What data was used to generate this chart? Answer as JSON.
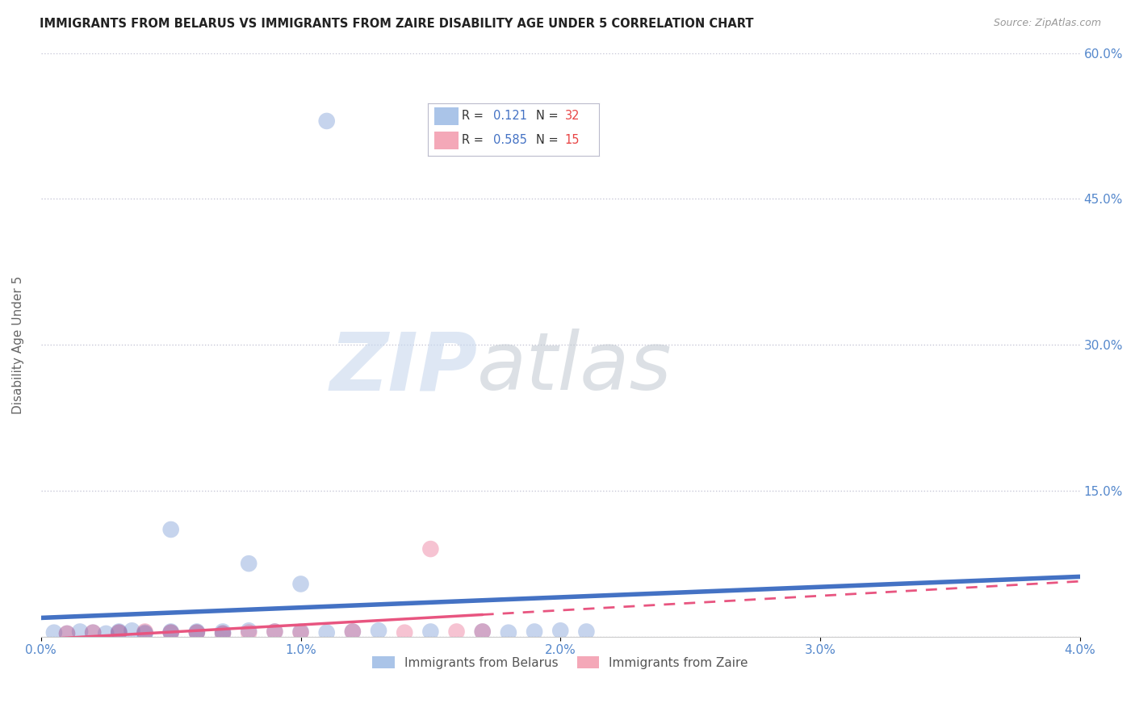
{
  "title": "IMMIGRANTS FROM BELARUS VS IMMIGRANTS FROM ZAIRE DISABILITY AGE UNDER 5 CORRELATION CHART",
  "source": "Source: ZipAtlas.com",
  "ylabel": "Disability Age Under 5",
  "xlim": [
    0.0,
    0.04
  ],
  "ylim": [
    0.0,
    0.6
  ],
  "xticks": [
    0.0,
    0.01,
    0.02,
    0.03,
    0.04
  ],
  "xtick_labels": [
    "0.0%",
    "1.0%",
    "2.0%",
    "3.0%",
    "4.0%"
  ],
  "yticks": [
    0.0,
    0.15,
    0.3,
    0.45,
    0.6
  ],
  "ytick_labels": [
    "",
    "15.0%",
    "30.0%",
    "45.0%",
    "60.0%"
  ],
  "grid_color": "#c8c8d8",
  "background_color": "#ffffff",
  "watermark_zip": "ZIP",
  "watermark_atlas": "atlas",
  "legend_items": [
    {
      "label": "Immigrants from Belarus",
      "color": "#aac4e8"
    },
    {
      "label": "Immigrants from Zaire",
      "color": "#f4a8b8"
    }
  ],
  "belarus_scatter": [
    [
      0.0005,
      0.004
    ],
    [
      0.001,
      0.003
    ],
    [
      0.0015,
      0.005
    ],
    [
      0.002,
      0.004
    ],
    [
      0.0025,
      0.003
    ],
    [
      0.003,
      0.005
    ],
    [
      0.003,
      0.004
    ],
    [
      0.0035,
      0.006
    ],
    [
      0.004,
      0.004
    ],
    [
      0.004,
      0.003
    ],
    [
      0.005,
      0.005
    ],
    [
      0.005,
      0.004
    ],
    [
      0.006,
      0.005
    ],
    [
      0.006,
      0.004
    ],
    [
      0.007,
      0.005
    ],
    [
      0.007,
      0.003
    ],
    [
      0.008,
      0.006
    ],
    [
      0.009,
      0.005
    ],
    [
      0.01,
      0.005
    ],
    [
      0.011,
      0.004
    ],
    [
      0.012,
      0.005
    ],
    [
      0.013,
      0.006
    ],
    [
      0.015,
      0.005
    ],
    [
      0.017,
      0.005
    ],
    [
      0.018,
      0.004
    ],
    [
      0.019,
      0.005
    ],
    [
      0.02,
      0.006
    ],
    [
      0.021,
      0.005
    ],
    [
      0.005,
      0.11
    ],
    [
      0.008,
      0.075
    ],
    [
      0.01,
      0.054
    ],
    [
      0.011,
      0.53
    ]
  ],
  "zaire_scatter": [
    [
      0.001,
      0.003
    ],
    [
      0.002,
      0.004
    ],
    [
      0.003,
      0.004
    ],
    [
      0.004,
      0.005
    ],
    [
      0.005,
      0.004
    ],
    [
      0.006,
      0.004
    ],
    [
      0.007,
      0.003
    ],
    [
      0.008,
      0.004
    ],
    [
      0.009,
      0.005
    ],
    [
      0.01,
      0.004
    ],
    [
      0.012,
      0.005
    ],
    [
      0.014,
      0.004
    ],
    [
      0.016,
      0.005
    ],
    [
      0.017,
      0.005
    ],
    [
      0.015,
      0.09
    ]
  ],
  "belarus_line_color": "#4472c4",
  "zaire_line_color": "#e85580",
  "title_color": "#222222",
  "tick_label_color": "#5588cc",
  "right_tick_color": "#5588cc",
  "ylabel_color": "#666666"
}
